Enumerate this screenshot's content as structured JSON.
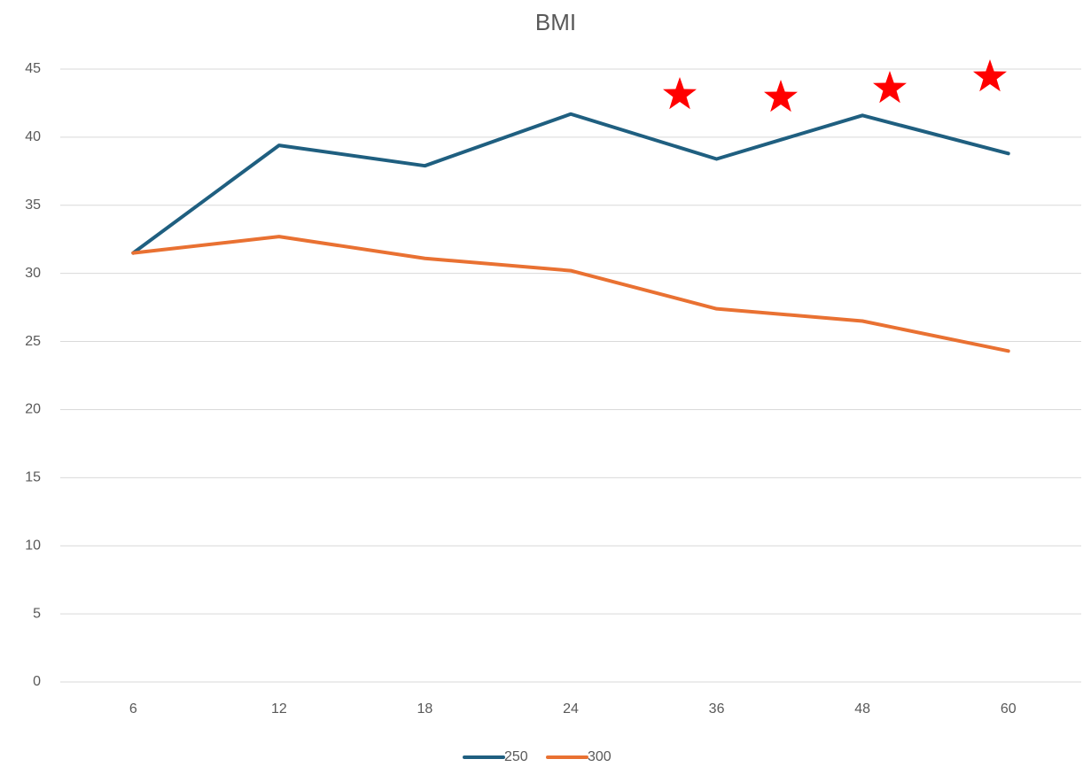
{
  "chart_data": {
    "type": "line",
    "title": "BMI",
    "categories": [
      "6",
      "12",
      "18",
      "24",
      "36",
      "48",
      "60"
    ],
    "series": [
      {
        "name": "250",
        "color": "#1f5f80",
        "values": [
          31.5,
          39.4,
          37.9,
          41.7,
          38.4,
          41.6,
          38.8
        ]
      },
      {
        "name": "300",
        "color": "#e97132",
        "values": [
          31.5,
          32.7,
          31.1,
          30.2,
          27.4,
          26.5,
          24.3
        ]
      }
    ],
    "ylim": [
      0,
      45
    ],
    "yticks": [
      0,
      5,
      10,
      15,
      20,
      25,
      30,
      35,
      40,
      45
    ],
    "grid": true,
    "legend": "bottom"
  }
}
